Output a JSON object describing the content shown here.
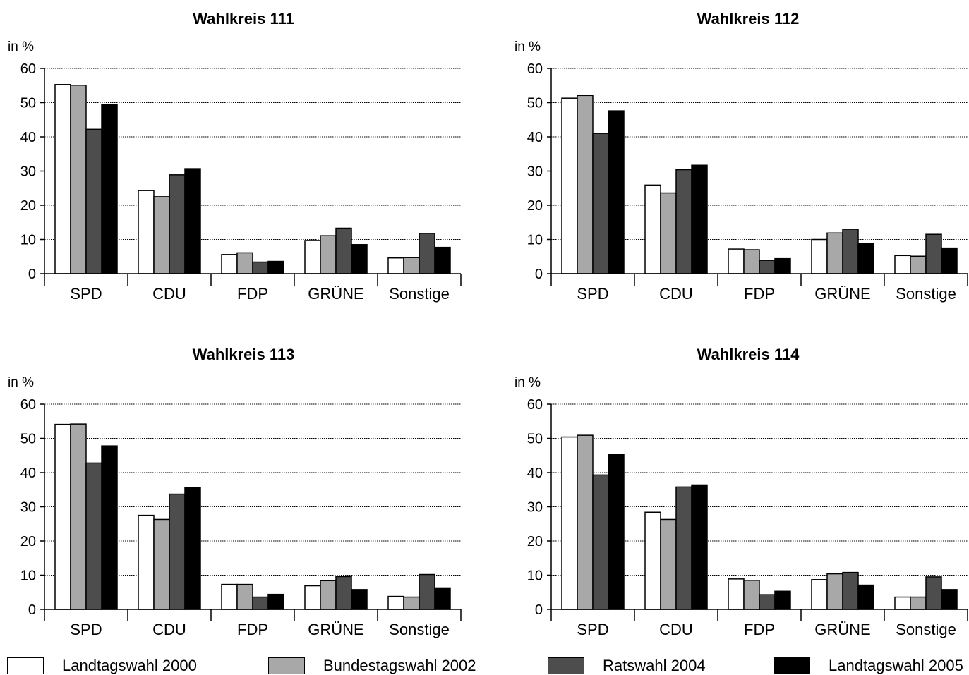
{
  "chart_data": [
    {
      "type": "bar",
      "title": "Wahlkreis 111",
      "ylabel": "in %",
      "ylim": [
        0,
        60
      ],
      "yticks": [
        0,
        10,
        20,
        30,
        40,
        50,
        60
      ],
      "grid": true,
      "categories": [
        "SPD",
        "CDU",
        "FDP",
        "GRÜNE",
        "Sonstige"
      ],
      "series": [
        {
          "name": "Landtagswahl 2000",
          "values": [
            55.3,
            24.3,
            5.6,
            9.7,
            4.6
          ]
        },
        {
          "name": "Bundestagswahl 2002",
          "values": [
            55.1,
            22.5,
            6.1,
            11.1,
            4.7
          ]
        },
        {
          "name": "Ratswahl 2004",
          "values": [
            42.2,
            28.9,
            3.4,
            13.3,
            11.8
          ]
        },
        {
          "name": "Landtagswahl 2005",
          "values": [
            49.4,
            30.7,
            3.6,
            8.5,
            7.7
          ]
        }
      ]
    },
    {
      "type": "bar",
      "title": "Wahlkreis 112",
      "ylabel": "in %",
      "ylim": [
        0,
        60
      ],
      "yticks": [
        0,
        10,
        20,
        30,
        40,
        50,
        60
      ],
      "grid": true,
      "categories": [
        "SPD",
        "CDU",
        "FDP",
        "GRÜNE",
        "Sonstige"
      ],
      "series": [
        {
          "name": "Landtagswahl 2000",
          "values": [
            51.3,
            25.9,
            7.2,
            10.0,
            5.3
          ]
        },
        {
          "name": "Bundestagswahl 2002",
          "values": [
            52.1,
            23.6,
            7.0,
            11.9,
            5.1
          ]
        },
        {
          "name": "Ratswahl 2004",
          "values": [
            41.0,
            30.4,
            3.9,
            13.0,
            11.5
          ]
        },
        {
          "name": "Landtagswahl 2005",
          "values": [
            47.6,
            31.7,
            4.4,
            8.9,
            7.5
          ]
        }
      ]
    },
    {
      "type": "bar",
      "title": "Wahlkreis 113",
      "ylabel": "in %",
      "ylim": [
        0,
        60
      ],
      "yticks": [
        0,
        10,
        20,
        30,
        40,
        50,
        60
      ],
      "grid": true,
      "categories": [
        "SPD",
        "CDU",
        "FDP",
        "GRÜNE",
        "Sonstige"
      ],
      "series": [
        {
          "name": "Landtagswahl 2000",
          "values": [
            54.1,
            27.5,
            7.3,
            6.9,
            3.8
          ]
        },
        {
          "name": "Bundestagswahl 2002",
          "values": [
            54.2,
            26.3,
            7.3,
            8.4,
            3.6
          ]
        },
        {
          "name": "Ratswahl 2004",
          "values": [
            42.8,
            33.7,
            3.6,
            9.6,
            10.2
          ]
        },
        {
          "name": "Landtagswahl 2005",
          "values": [
            47.8,
            35.6,
            4.4,
            5.8,
            6.3
          ]
        }
      ]
    },
    {
      "type": "bar",
      "title": "Wahlkreis 114",
      "ylabel": "in %",
      "ylim": [
        0,
        60
      ],
      "yticks": [
        0,
        10,
        20,
        30,
        40,
        50,
        60
      ],
      "grid": true,
      "categories": [
        "SPD",
        "CDU",
        "FDP",
        "GRÜNE",
        "Sonstige"
      ],
      "series": [
        {
          "name": "Landtagswahl 2000",
          "values": [
            50.4,
            28.4,
            8.9,
            8.7,
            3.6
          ]
        },
        {
          "name": "Bundestagswahl 2002",
          "values": [
            50.9,
            26.3,
            8.5,
            10.4,
            3.6
          ]
        },
        {
          "name": "Ratswahl 2004",
          "values": [
            39.3,
            35.8,
            4.3,
            10.8,
            9.5
          ]
        },
        {
          "name": "Landtagswahl 2005",
          "values": [
            45.4,
            36.4,
            5.3,
            7.1,
            5.8
          ]
        }
      ]
    }
  ],
  "legend": [
    {
      "label": "Landtagswahl 2000",
      "color": "#ffffff"
    },
    {
      "label": "Bundestagswahl 2002",
      "color": "#a8a8a8"
    },
    {
      "label": "Ratswahl 2004",
      "color": "#4d4d4d"
    },
    {
      "label": "Landtagswahl 2005",
      "color": "#000000"
    }
  ]
}
